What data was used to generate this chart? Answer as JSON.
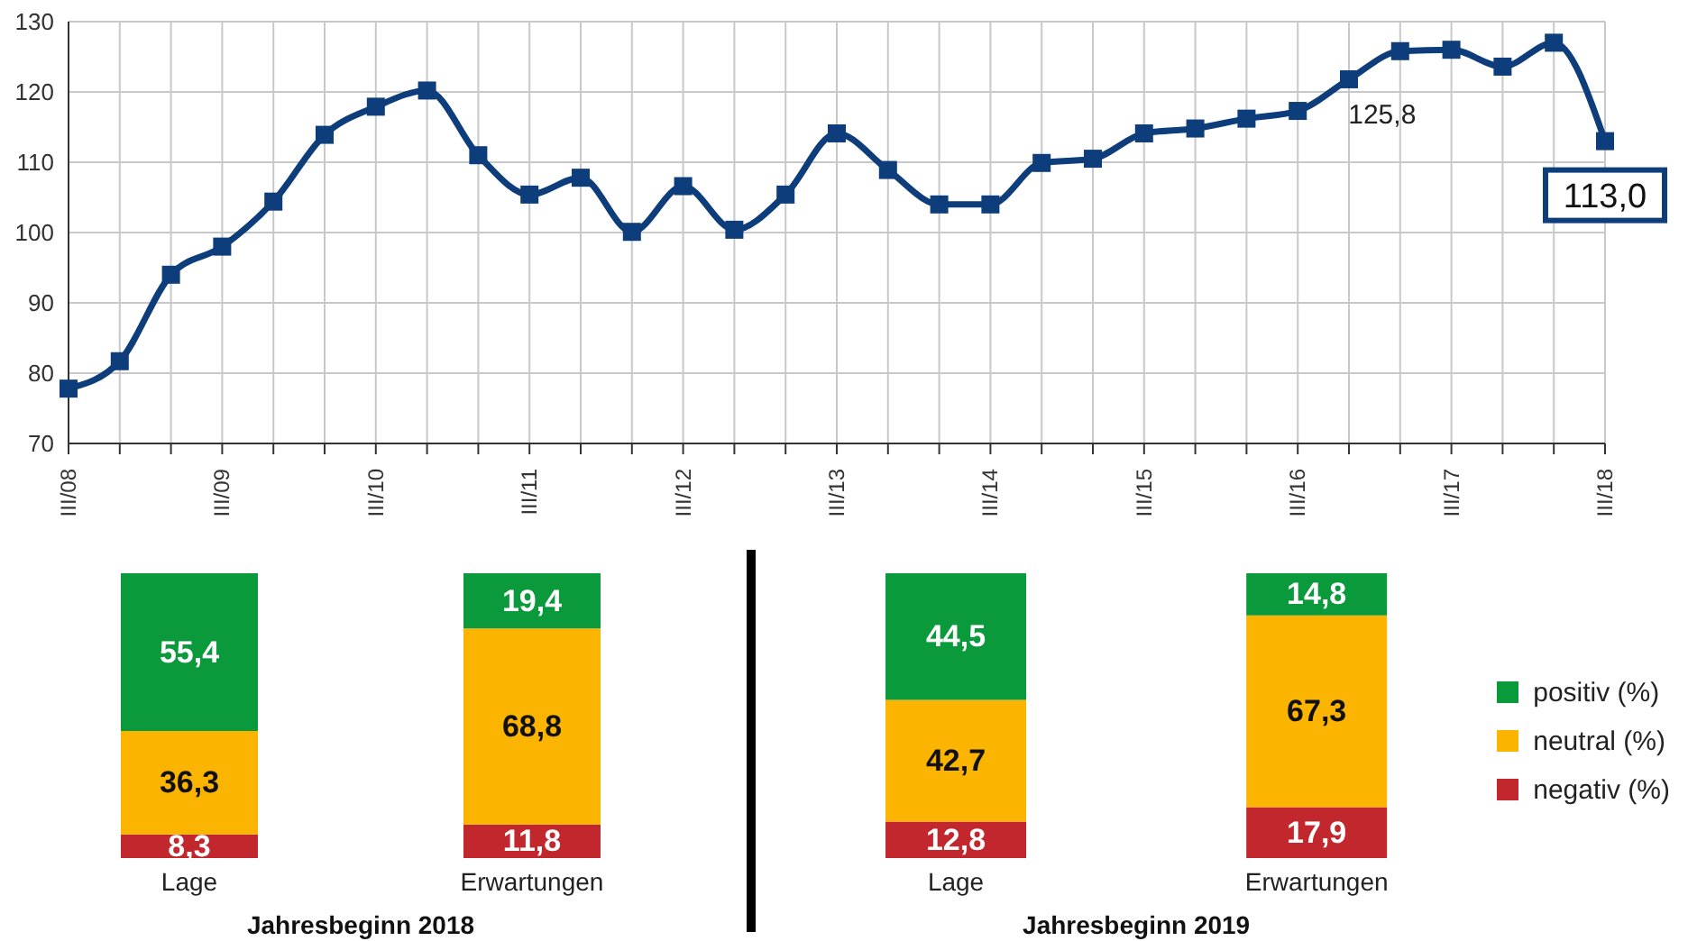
{
  "chart_data": [
    {
      "type": "line",
      "categories": [
        "III/08",
        null,
        null,
        "III/09",
        null,
        null,
        "III/10",
        null,
        null,
        "III/11",
        null,
        null,
        "III/12",
        null,
        null,
        "III/13",
        null,
        null,
        "III/14",
        null,
        null,
        "III/15",
        null,
        null,
        "III/16",
        null,
        null,
        "III/17",
        null,
        null,
        "III/18"
      ],
      "series": [
        {
          "color": "#0d3d7a",
          "values": [
            77.8,
            81.7,
            94.0,
            98.0,
            104.4,
            113.9,
            117.9,
            120.2,
            111.0,
            105.4,
            107.8,
            100.1,
            106.6,
            100.4,
            105.4,
            114.1,
            108.9,
            104.0,
            104.0,
            109.9,
            110.5,
            114.1,
            114.8,
            116.2,
            117.3,
            121.8,
            125.8,
            126.0,
            123.6,
            127.0,
            113.0
          ],
          "value_labels": [
            null,
            null,
            null,
            null,
            null,
            null,
            null,
            null,
            null,
            null,
            null,
            null,
            null,
            null,
            null,
            null,
            null,
            null,
            null,
            null,
            null,
            null,
            null,
            null,
            null,
            null,
            "125,8",
            null,
            null,
            null,
            "113,0"
          ]
        }
      ],
      "ylim": [
        70,
        130
      ],
      "yticks": [
        70,
        80,
        90,
        100,
        110,
        120,
        130
      ],
      "grid": true,
      "marker": "square",
      "line_style": "solid"
    },
    {
      "type": "bar",
      "stacked": true,
      "xlabel": "Jahresbeginn 2018",
      "categories": [
        "Lage",
        "Erwartungen"
      ],
      "series": [
        {
          "color": "#c1272d",
          "values": [
            8.3,
            11.8
          ],
          "value_labels": [
            "8,3",
            "11,8"
          ]
        },
        {
          "color": "#fbb400",
          "values": [
            36.3,
            68.8
          ],
          "value_labels": [
            "36,3",
            "68,8"
          ]
        },
        {
          "color": "#0a9a3c",
          "values": [
            55.4,
            19.4
          ],
          "value_labels": [
            "55,4",
            "19,4"
          ]
        }
      ],
      "tick_labels": "x"
    },
    {
      "type": "bar",
      "stacked": true,
      "xlabel": "Jahresbeginn 2019",
      "categories": [
        "Lage",
        "Erwartungen"
      ],
      "series": [
        {
          "name": "negativ (%)",
          "color": "#c1272d",
          "values": [
            12.8,
            17.9
          ],
          "value_labels": [
            "12,8",
            "17,9"
          ]
        },
        {
          "name": "neutral (%)",
          "color": "#fbb400",
          "values": [
            42.7,
            67.3
          ],
          "value_labels": [
            "42,7",
            "67,3"
          ]
        },
        {
          "name": "positiv (%)",
          "color": "#0a9a3c",
          "values": [
            44.5,
            14.8
          ],
          "value_labels": [
            "44,5",
            "14,8"
          ]
        }
      ],
      "tick_labels": "x",
      "legend": "right"
    }
  ]
}
